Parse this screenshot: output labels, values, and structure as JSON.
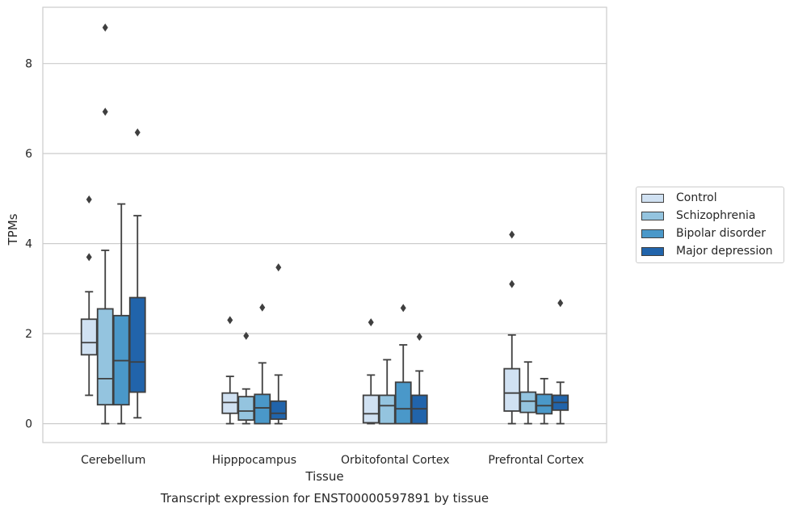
{
  "chart_data": {
    "type": "box",
    "title": "Transcript expression for ENST00000597891 by tissue",
    "xlabel": "Tissue",
    "ylabel": "TPMs",
    "ylim": [
      -0.42,
      9.25
    ],
    "yticks": [
      0,
      2,
      4,
      6,
      8
    ],
    "grid": "horizontal",
    "legend_position": "right",
    "categories": [
      "Cerebellum",
      "Hipppocampus",
      "Orbitofontal Cortex",
      "Prefrontal Cortex"
    ],
    "series": [
      {
        "name": "Control",
        "color": "#d0e1f2",
        "boxes": [
          {
            "whislo": 0.63,
            "q1": 1.53,
            "med": 1.8,
            "q3": 2.32,
            "whishi": 2.93,
            "fliers": [
              3.7,
              4.98
            ]
          },
          {
            "whislo": 0.0,
            "q1": 0.23,
            "med": 0.47,
            "q3": 0.68,
            "whishi": 1.05,
            "fliers": [
              2.3
            ]
          },
          {
            "whislo": 0.0,
            "q1": 0.02,
            "med": 0.22,
            "q3": 0.63,
            "whishi": 1.08,
            "fliers": [
              2.25
            ]
          },
          {
            "whislo": 0.0,
            "q1": 0.28,
            "med": 0.68,
            "q3": 1.22,
            "whishi": 1.97,
            "fliers": [
              3.1,
              4.2
            ]
          }
        ]
      },
      {
        "name": "Schizophrenia",
        "color": "#94c4df",
        "boxes": [
          {
            "whislo": 0.0,
            "q1": 0.42,
            "med": 1.0,
            "q3": 2.55,
            "whishi": 3.85,
            "fliers": [
              6.93,
              8.8
            ]
          },
          {
            "whislo": 0.0,
            "q1": 0.08,
            "med": 0.28,
            "q3": 0.6,
            "whishi": 0.77,
            "fliers": [
              1.95
            ]
          },
          {
            "whislo": 0.0,
            "q1": 0.0,
            "med": 0.4,
            "q3": 0.63,
            "whishi": 1.42,
            "fliers": []
          },
          {
            "whislo": 0.0,
            "q1": 0.25,
            "med": 0.5,
            "q3": 0.7,
            "whishi": 1.37,
            "fliers": []
          }
        ]
      },
      {
        "name": "Bipolar disorder",
        "color": "#4a98c9",
        "boxes": [
          {
            "whislo": 0.0,
            "q1": 0.42,
            "med": 1.4,
            "q3": 2.4,
            "whishi": 4.88,
            "fliers": []
          },
          {
            "whislo": 0.0,
            "q1": 0.0,
            "med": 0.35,
            "q3": 0.65,
            "whishi": 1.35,
            "fliers": [
              2.58
            ]
          },
          {
            "whislo": 0.0,
            "q1": 0.0,
            "med": 0.33,
            "q3": 0.92,
            "whishi": 1.75,
            "fliers": [
              2.57
            ]
          },
          {
            "whislo": 0.0,
            "q1": 0.22,
            "med": 0.4,
            "q3": 0.65,
            "whishi": 1.0,
            "fliers": []
          }
        ]
      },
      {
        "name": "Major depression",
        "color": "#2164ab",
        "boxes": [
          {
            "whislo": 0.13,
            "q1": 0.7,
            "med": 1.37,
            "q3": 2.8,
            "whishi": 4.62,
            "fliers": [
              6.47
            ]
          },
          {
            "whislo": 0.0,
            "q1": 0.1,
            "med": 0.23,
            "q3": 0.5,
            "whishi": 1.08,
            "fliers": [
              3.47
            ]
          },
          {
            "whislo": 0.0,
            "q1": 0.0,
            "med": 0.33,
            "q3": 0.63,
            "whishi": 1.17,
            "fliers": [
              1.93
            ]
          },
          {
            "whislo": 0.0,
            "q1": 0.3,
            "med": 0.47,
            "q3": 0.63,
            "whishi": 0.92,
            "fliers": [
              2.68
            ]
          }
        ]
      }
    ]
  }
}
